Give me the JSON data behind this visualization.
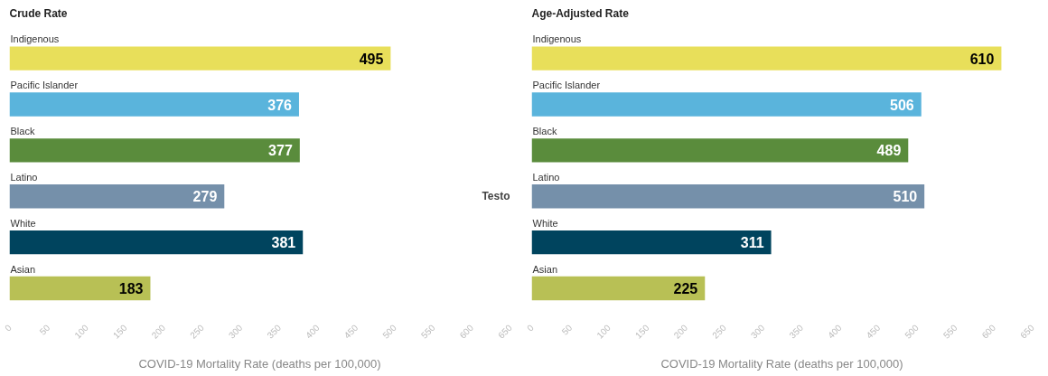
{
  "chart_data": [
    {
      "type": "bar",
      "orientation": "horizontal",
      "title": "Crude Rate",
      "xlabel": "COVID-19 Mortality Rate (deaths per 100,000)",
      "categories": [
        "Indigenous",
        "Pacific Islander",
        "Black",
        "Latino",
        "White",
        "Asian"
      ],
      "values": [
        495,
        376,
        377,
        279,
        381,
        183
      ],
      "colors": [
        "#e8df5a",
        "#5ab4dc",
        "#5a8c3c",
        "#7590aa",
        "#00445e",
        "#b8c055"
      ],
      "xlim": [
        0,
        650
      ],
      "xticks": [
        0,
        50,
        100,
        150,
        200,
        250,
        300,
        350,
        400,
        450,
        500,
        550,
        600,
        650
      ],
      "data_labels": true,
      "grid": false
    },
    {
      "type": "bar",
      "orientation": "horizontal",
      "title": "Age-Adjusted Rate",
      "xlabel": "COVID-19 Mortality Rate (deaths per 100,000)",
      "categories": [
        "Indigenous",
        "Pacific Islander",
        "Black",
        "Latino",
        "White",
        "Asian"
      ],
      "values": [
        610,
        506,
        489,
        510,
        311,
        225
      ],
      "colors": [
        "#e8df5a",
        "#5ab4dc",
        "#5a8c3c",
        "#7590aa",
        "#00445e",
        "#b8c055"
      ],
      "xlim": [
        0,
        650
      ],
      "xticks": [
        0,
        50,
        100,
        150,
        200,
        250,
        300,
        350,
        400,
        450,
        500,
        550,
        600,
        650
      ],
      "data_labels": true,
      "grid": false,
      "annotations": [
        "Testo"
      ]
    }
  ]
}
